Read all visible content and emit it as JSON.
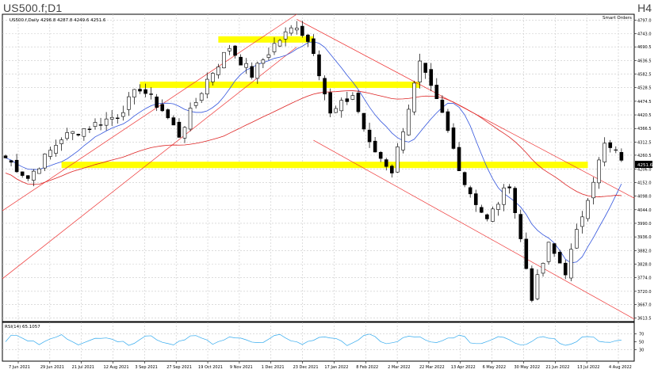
{
  "header": {
    "title": "US500.f;D1",
    "timeframe": "H4"
  },
  "chart_info": {
    "symbol_line": "US500.f,Daily  4296.8 4287.8 4249.6 4251.6",
    "indicator_label": "Smart Orders",
    "rsi_label": "RSI(14) 65.1057"
  },
  "colors": {
    "candle": "#000000",
    "ma_short": "#3355dd",
    "ma_long": "#dd2222",
    "trendline": "#ee3333",
    "zone": "#ffff00",
    "rsi": "#33aaee",
    "grid": "#c8c8c8",
    "price_tag": "#000000"
  },
  "chart_data": {
    "type": "candlestick",
    "title": "US500.f;D1",
    "y_axis_ticks": [
      "4797.0",
      "4743.0",
      "4690.5",
      "4636.5",
      "4582.5",
      "4528.5",
      "4474.5",
      "4420.5",
      "4366.5",
      "4312.5",
      "4260.5",
      "4206.0",
      "4152.0",
      "4098.0",
      "4044.0",
      "3990.0",
      "3936.0",
      "3882.0",
      "3828.0",
      "3774.0",
      "3720.0",
      "3667.0",
      "3613.5"
    ],
    "ylim": [
      3600,
      4820
    ],
    "current_price": "4251.6",
    "x_axis_ticks": [
      "7 Jun 2021",
      "29 Jun 2021",
      "21 Jul 2021",
      "12 Aug 2021",
      "3 Sep 2021",
      "27 Sep 2021",
      "19 Oct 2021",
      "9 Nov 2021",
      "1 Dec 2021",
      "23 Dec 2021",
      "17 Jan 2022",
      "8 Feb 2022",
      "2 Mar 2022",
      "22 Mar 2022",
      "13 Apr 2022",
      "6 May 2022",
      "30 May 2022",
      "21 Jun 2022",
      "13 Jul 2022",
      "4 Aug 2022"
    ],
    "rsi_ticks": [
      "70",
      "50",
      "30"
    ],
    "rsi_ylim": [
      0,
      100
    ],
    "supply_demand_zones": [
      {
        "from_index": 38,
        "to_index": 55,
        "price": 4720
      },
      {
        "from_index": 24,
        "to_index": 74,
        "price": 4540
      },
      {
        "from_index": 10,
        "to_index": 104,
        "price": 4222
      }
    ],
    "key_points": [
      {
        "x": 0,
        "close": 4250
      },
      {
        "x": 4,
        "close": 4170
      },
      {
        "x": 10,
        "close": 4330
      },
      {
        "x": 20,
        "close": 4420
      },
      {
        "x": 24,
        "close": 4530
      },
      {
        "x": 28,
        "close": 4440
      },
      {
        "x": 31,
        "close": 4340
      },
      {
        "x": 36,
        "close": 4560
      },
      {
        "x": 40,
        "close": 4690
      },
      {
        "x": 44,
        "close": 4580
      },
      {
        "x": 48,
        "close": 4700
      },
      {
        "x": 52,
        "close": 4780
      },
      {
        "x": 55,
        "close": 4680
      },
      {
        "x": 58,
        "close": 4420
      },
      {
        "x": 62,
        "close": 4500
      },
      {
        "x": 65,
        "close": 4300
      },
      {
        "x": 69,
        "close": 4200
      },
      {
        "x": 74,
        "close": 4620
      },
      {
        "x": 78,
        "close": 4420
      },
      {
        "x": 82,
        "close": 4150
      },
      {
        "x": 86,
        "close": 4000
      },
      {
        "x": 90,
        "close": 4150
      },
      {
        "x": 94,
        "close": 3700
      },
      {
        "x": 97,
        "close": 3900
      },
      {
        "x": 100,
        "close": 3800
      },
      {
        "x": 104,
        "close": 4100
      },
      {
        "x": 107,
        "close": 4300
      },
      {
        "x": 110,
        "close": 4251
      }
    ]
  }
}
